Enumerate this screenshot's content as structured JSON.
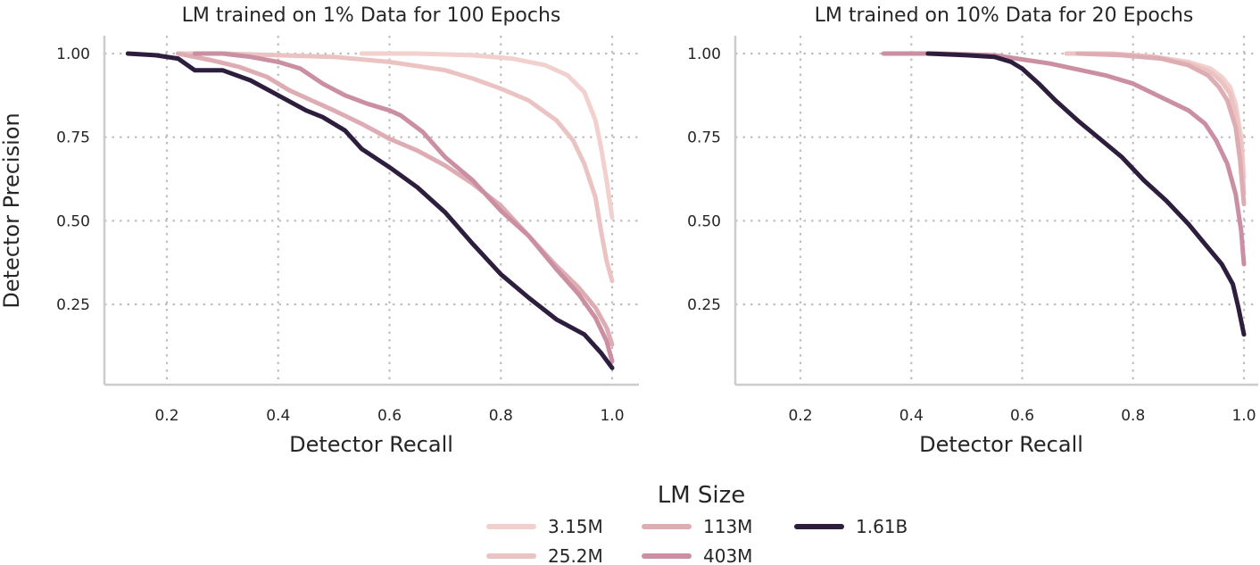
{
  "chart_data": {
    "type": "line",
    "ylabel": "Detector Precision",
    "legend_title": "LM Size",
    "legend_placement": "bottom-center",
    "grid": "dotted",
    "xticks": [
      0.2,
      0.4,
      0.6,
      0.8,
      1.0
    ],
    "xtick_labels": [
      "0.2",
      "0.4",
      "0.6",
      "0.8",
      "1.0"
    ],
    "yticks": [
      0.25,
      0.5,
      0.75,
      1.0
    ],
    "ytick_labels": [
      "0.25",
      "0.50",
      "0.75",
      "1.00"
    ],
    "series_meta": [
      {
        "name": "3.15M",
        "color": "#f1d0cd",
        "width": 5
      },
      {
        "name": "25.2M",
        "color": "#ebc3c3",
        "width": 5
      },
      {
        "name": "113M",
        "color": "#deadb4",
        "width": 5
      },
      {
        "name": "403M",
        "color": "#cb8fa2",
        "width": 5
      },
      {
        "name": "1.61B",
        "color": "#2d1e3e",
        "width": 5
      }
    ],
    "panels": [
      {
        "title": "LM trained on 1% Data for 100 Epochs",
        "xlabel": "Detector Recall",
        "xlim": [
          0.1,
          1.04
        ],
        "ylim": [
          0.0,
          1.05
        ],
        "series": [
          {
            "name": "3.15M",
            "points": [
              [
                0.55,
                1.0
              ],
              [
                0.65,
                1.0
              ],
              [
                0.75,
                0.995
              ],
              [
                0.82,
                0.985
              ],
              [
                0.88,
                0.965
              ],
              [
                0.92,
                0.935
              ],
              [
                0.95,
                0.885
              ],
              [
                0.97,
                0.8
              ],
              [
                0.98,
                0.72
              ],
              [
                0.99,
                0.62
              ],
              [
                1.0,
                0.51
              ]
            ]
          },
          {
            "name": "25.2M",
            "points": [
              [
                0.22,
                1.0
              ],
              [
                0.3,
                1.0
              ],
              [
                0.4,
                0.995
              ],
              [
                0.5,
                0.99
              ],
              [
                0.6,
                0.975
              ],
              [
                0.7,
                0.95
              ],
              [
                0.75,
                0.925
              ],
              [
                0.8,
                0.895
              ],
              [
                0.85,
                0.86
              ],
              [
                0.9,
                0.8
              ],
              [
                0.93,
                0.74
              ],
              [
                0.95,
                0.67
              ],
              [
                0.97,
                0.57
              ],
              [
                0.98,
                0.47
              ],
              [
                0.99,
                0.38
              ],
              [
                1.0,
                0.32
              ]
            ]
          },
          {
            "name": "113M",
            "points": [
              [
                0.22,
                1.0
              ],
              [
                0.28,
                0.98
              ],
              [
                0.33,
                0.96
              ],
              [
                0.38,
                0.93
              ],
              [
                0.42,
                0.89
              ],
              [
                0.46,
                0.86
              ],
              [
                0.5,
                0.83
              ],
              [
                0.55,
                0.79
              ],
              [
                0.6,
                0.745
              ],
              [
                0.65,
                0.71
              ],
              [
                0.7,
                0.665
              ],
              [
                0.75,
                0.61
              ],
              [
                0.8,
                0.545
              ],
              [
                0.85,
                0.455
              ],
              [
                0.9,
                0.365
              ],
              [
                0.94,
                0.3
              ],
              [
                0.97,
                0.24
              ],
              [
                0.99,
                0.18
              ],
              [
                1.0,
                0.13
              ]
            ]
          },
          {
            "name": "403M",
            "points": [
              [
                0.25,
                1.0
              ],
              [
                0.3,
                1.0
              ],
              [
                0.35,
                0.99
              ],
              [
                0.4,
                0.975
              ],
              [
                0.44,
                0.955
              ],
              [
                0.48,
                0.91
              ],
              [
                0.52,
                0.875
              ],
              [
                0.56,
                0.85
              ],
              [
                0.6,
                0.83
              ],
              [
                0.62,
                0.815
              ],
              [
                0.66,
                0.765
              ],
              [
                0.7,
                0.69
              ],
              [
                0.75,
                0.62
              ],
              [
                0.8,
                0.53
              ],
              [
                0.85,
                0.455
              ],
              [
                0.9,
                0.355
              ],
              [
                0.94,
                0.28
              ],
              [
                0.97,
                0.21
              ],
              [
                0.99,
                0.14
              ],
              [
                1.0,
                0.08
              ]
            ]
          },
          {
            "name": "1.61B",
            "points": [
              [
                0.13,
                1.0
              ],
              [
                0.18,
                0.995
              ],
              [
                0.22,
                0.985
              ],
              [
                0.25,
                0.95
              ],
              [
                0.3,
                0.95
              ],
              [
                0.35,
                0.92
              ],
              [
                0.4,
                0.875
              ],
              [
                0.45,
                0.83
              ],
              [
                0.48,
                0.81
              ],
              [
                0.52,
                0.77
              ],
              [
                0.55,
                0.715
              ],
              [
                0.6,
                0.66
              ],
              [
                0.65,
                0.6
              ],
              [
                0.7,
                0.525
              ],
              [
                0.75,
                0.43
              ],
              [
                0.8,
                0.34
              ],
              [
                0.85,
                0.27
              ],
              [
                0.9,
                0.205
              ],
              [
                0.95,
                0.16
              ],
              [
                0.98,
                0.105
              ],
              [
                1.0,
                0.06
              ]
            ]
          }
        ]
      },
      {
        "title": "LM trained on 10% Data for 20 Epochs",
        "xlabel": "Detector Recall",
        "xlim": [
          0.1,
          1.04
        ],
        "ylim": [
          0.0,
          1.05
        ],
        "series": [
          {
            "name": "3.15M",
            "points": [
              [
                0.68,
                1.0
              ],
              [
                0.76,
                1.0
              ],
              [
                0.84,
                0.99
              ],
              [
                0.9,
                0.975
              ],
              [
                0.94,
                0.955
              ],
              [
                0.96,
                0.93
              ],
              [
                0.975,
                0.9
              ],
              [
                0.985,
                0.85
              ],
              [
                0.995,
                0.75
              ],
              [
                1.0,
                0.63
              ]
            ]
          },
          {
            "name": "25.2M",
            "points": [
              [
                0.68,
                1.0
              ],
              [
                0.76,
                1.0
              ],
              [
                0.84,
                0.99
              ],
              [
                0.9,
                0.97
              ],
              [
                0.94,
                0.945
              ],
              [
                0.96,
                0.915
              ],
              [
                0.975,
                0.88
              ],
              [
                0.985,
                0.82
              ],
              [
                0.995,
                0.72
              ],
              [
                1.0,
                0.58
              ]
            ]
          },
          {
            "name": "113M",
            "points": [
              [
                0.7,
                1.0
              ],
              [
                0.78,
                0.995
              ],
              [
                0.85,
                0.985
              ],
              [
                0.9,
                0.965
              ],
              [
                0.935,
                0.935
              ],
              [
                0.955,
                0.9
              ],
              [
                0.97,
                0.86
              ],
              [
                0.985,
                0.78
              ],
              [
                0.993,
                0.68
              ],
              [
                1.0,
                0.55
              ]
            ]
          },
          {
            "name": "403M",
            "points": [
              [
                0.35,
                1.0
              ],
              [
                0.45,
                1.0
              ],
              [
                0.55,
                0.995
              ],
              [
                0.65,
                0.97
              ],
              [
                0.75,
                0.935
              ],
              [
                0.8,
                0.91
              ],
              [
                0.85,
                0.87
              ],
              [
                0.9,
                0.83
              ],
              [
                0.93,
                0.79
              ],
              [
                0.95,
                0.74
              ],
              [
                0.97,
                0.67
              ],
              [
                0.985,
                0.58
              ],
              [
                0.995,
                0.47
              ],
              [
                1.0,
                0.37
              ]
            ]
          },
          {
            "name": "1.61B",
            "points": [
              [
                0.43,
                1.0
              ],
              [
                0.5,
                0.995
              ],
              [
                0.55,
                0.99
              ],
              [
                0.58,
                0.975
              ],
              [
                0.6,
                0.955
              ],
              [
                0.63,
                0.91
              ],
              [
                0.66,
                0.86
              ],
              [
                0.7,
                0.8
              ],
              [
                0.74,
                0.745
              ],
              [
                0.78,
                0.69
              ],
              [
                0.82,
                0.62
              ],
              [
                0.86,
                0.56
              ],
              [
                0.9,
                0.49
              ],
              [
                0.93,
                0.43
              ],
              [
                0.96,
                0.37
              ],
              [
                0.98,
                0.31
              ],
              [
                0.99,
                0.24
              ],
              [
                1.0,
                0.16
              ]
            ]
          }
        ]
      }
    ]
  }
}
